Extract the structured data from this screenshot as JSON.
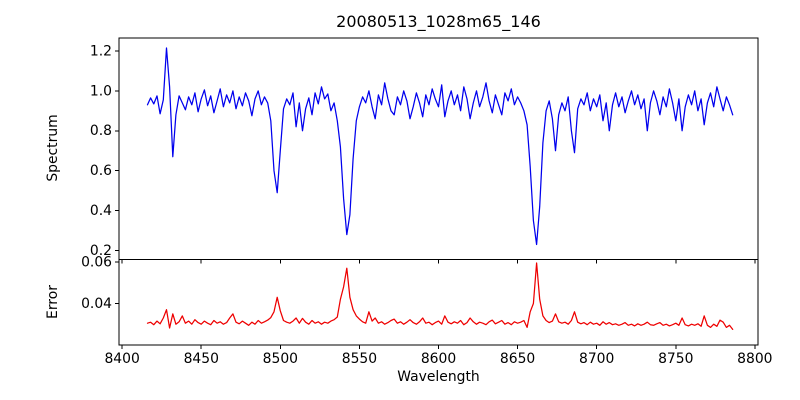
{
  "chart_data": {
    "type": "line",
    "title": "20080513_1028m65_146",
    "xlabel": "Wavelength",
    "grid": false,
    "legend": null,
    "xlim": [
      8398,
      8802
    ],
    "x_ticks": [
      8400,
      8450,
      8500,
      8550,
      8600,
      8650,
      8700,
      8750,
      8800
    ],
    "x_tick_labels": [
      "8400",
      "8450",
      "8500",
      "8550",
      "8600",
      "8650",
      "8700",
      "8750",
      "8800"
    ],
    "x_start": 8416,
    "x_step": 2,
    "panels": [
      {
        "name": "spectrum",
        "ylabel": "Spectrum",
        "color": "#0000ee",
        "ylim": [
          0.155,
          1.265
        ],
        "y_ticks": [
          0.2,
          0.4,
          0.6,
          0.8,
          1.0,
          1.2
        ],
        "y_tick_labels": [
          "0.2",
          "0.4",
          "0.6",
          "0.8",
          "1.0",
          "1.2"
        ],
        "absorption_lines": [
          8498,
          8542,
          8662
        ],
        "values": [
          0.93,
          0.965,
          0.935,
          0.975,
          0.885,
          0.955,
          1.215,
          1.02,
          0.67,
          0.88,
          0.975,
          0.94,
          0.905,
          0.97,
          0.93,
          0.99,
          0.895,
          0.96,
          1.005,
          0.925,
          0.975,
          0.89,
          0.95,
          1.01,
          0.92,
          0.98,
          0.94,
          1.0,
          0.91,
          0.97,
          0.925,
          0.99,
          0.95,
          0.875,
          0.96,
          1.0,
          0.93,
          0.97,
          0.94,
          0.85,
          0.6,
          0.49,
          0.7,
          0.91,
          0.96,
          0.93,
          0.99,
          0.82,
          0.94,
          0.8,
          0.91,
          0.965,
          0.88,
          0.99,
          0.935,
          1.02,
          0.96,
          0.985,
          0.9,
          0.94,
          0.85,
          0.72,
          0.46,
          0.28,
          0.38,
          0.66,
          0.85,
          0.92,
          0.97,
          0.94,
          1.0,
          0.92,
          0.86,
          0.98,
          0.93,
          1.04,
          0.96,
          0.9,
          0.88,
          0.97,
          0.93,
          1.0,
          0.95,
          0.86,
          0.92,
          0.99,
          0.94,
          0.87,
          0.98,
          0.93,
          1.01,
          0.96,
          0.92,
          1.03,
          0.87,
          0.95,
          1.0,
          0.93,
          0.98,
          0.9,
          1.02,
          0.96,
          0.86,
          0.94,
          1.0,
          0.92,
          0.97,
          1.04,
          0.95,
          0.89,
          0.98,
          0.93,
          0.88,
          0.99,
          0.95,
          1.01,
          0.93,
          0.97,
          0.94,
          0.9,
          0.83,
          0.62,
          0.35,
          0.23,
          0.42,
          0.74,
          0.9,
          0.95,
          0.86,
          0.7,
          0.88,
          0.94,
          0.9,
          0.97,
          0.8,
          0.69,
          0.91,
          0.96,
          0.93,
          0.99,
          0.9,
          0.96,
          0.92,
          0.98,
          0.85,
          0.94,
          0.8,
          0.93,
          0.99,
          0.92,
          0.97,
          0.89,
          0.95,
          1.0,
          0.93,
          0.98,
          0.91,
          0.96,
          0.8,
          0.94,
          1.0,
          0.95,
          0.88,
          0.97,
          0.92,
          1.01,
          0.94,
          0.85,
          0.96,
          0.8,
          0.92,
          0.98,
          0.93,
          1.0,
          0.9,
          0.96,
          0.83,
          0.94,
          0.99,
          0.92,
          1.02,
          0.96,
          0.9,
          0.97,
          0.93,
          0.88
        ]
      },
      {
        "name": "error",
        "ylabel": "Error",
        "color": "#ee0000",
        "ylim": [
          0.02,
          0.0612
        ],
        "y_ticks": [
          0.04,
          0.06
        ],
        "y_tick_labels": [
          "0.04",
          "0.06"
        ],
        "values": [
          0.0305,
          0.031,
          0.0298,
          0.0315,
          0.0302,
          0.033,
          0.037,
          0.0282,
          0.035,
          0.03,
          0.0312,
          0.034,
          0.0305,
          0.0315,
          0.03,
          0.0322,
          0.0308,
          0.03,
          0.0315,
          0.0305,
          0.0298,
          0.0318,
          0.0305,
          0.0312,
          0.03,
          0.0308,
          0.033,
          0.035,
          0.031,
          0.0302,
          0.0315,
          0.0305,
          0.0295,
          0.031,
          0.03,
          0.0318,
          0.0305,
          0.0312,
          0.032,
          0.0332,
          0.036,
          0.043,
          0.0365,
          0.0318,
          0.031,
          0.0305,
          0.0315,
          0.033,
          0.0305,
          0.0328,
          0.031,
          0.03,
          0.0318,
          0.0305,
          0.0312,
          0.03,
          0.031,
          0.0305,
          0.0315,
          0.0322,
          0.0335,
          0.042,
          0.048,
          0.057,
          0.043,
          0.037,
          0.034,
          0.0325,
          0.0312,
          0.0305,
          0.036,
          0.0315,
          0.033,
          0.0305,
          0.0312,
          0.03,
          0.0308,
          0.0318,
          0.0325,
          0.0305,
          0.0312,
          0.03,
          0.031,
          0.0322,
          0.0308,
          0.03,
          0.0312,
          0.033,
          0.0305,
          0.031,
          0.0298,
          0.0308,
          0.0315,
          0.03,
          0.034,
          0.031,
          0.0302,
          0.0312,
          0.0305,
          0.0318,
          0.0298,
          0.0308,
          0.033,
          0.0312,
          0.03,
          0.031,
          0.0305,
          0.0298,
          0.0312,
          0.032,
          0.0302,
          0.031,
          0.0318,
          0.03,
          0.0308,
          0.0298,
          0.0312,
          0.0305,
          0.031,
          0.0318,
          0.0285,
          0.036,
          0.04,
          0.0595,
          0.042,
          0.034,
          0.0318,
          0.0308,
          0.0315,
          0.035,
          0.0312,
          0.0305,
          0.031,
          0.03,
          0.0318,
          0.036,
          0.031,
          0.0302,
          0.0308,
          0.0298,
          0.031,
          0.03,
          0.0305,
          0.0295,
          0.0312,
          0.03,
          0.0308,
          0.0298,
          0.0302,
          0.0295,
          0.03,
          0.0308,
          0.0295,
          0.03,
          0.0292,
          0.0302,
          0.0295,
          0.03,
          0.031,
          0.0298,
          0.0295,
          0.0302,
          0.0308,
          0.0295,
          0.03,
          0.0292,
          0.0298,
          0.0305,
          0.0295,
          0.033,
          0.0298,
          0.0292,
          0.03,
          0.0295,
          0.0302,
          0.029,
          0.034,
          0.0295,
          0.0285,
          0.03,
          0.029,
          0.032,
          0.031,
          0.0285,
          0.0295,
          0.0275
        ]
      }
    ]
  }
}
